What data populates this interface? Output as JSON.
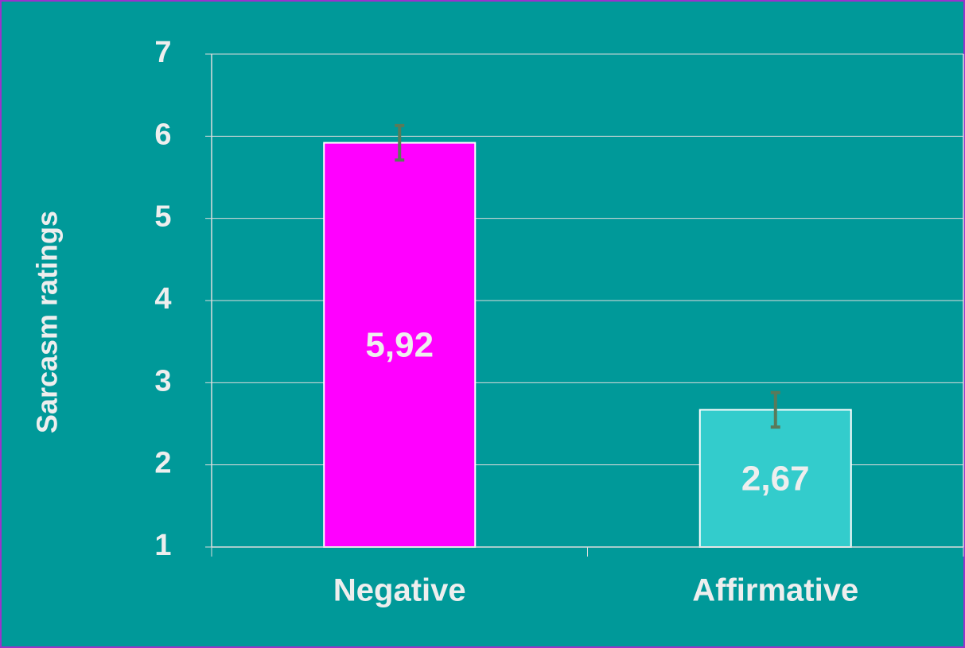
{
  "chart_data": {
    "type": "bar",
    "y_label": "Sarcasm ratings",
    "categories": [
      "Negative",
      "Affirmative"
    ],
    "values": [
      5.92,
      2.67
    ],
    "value_labels": [
      "5,92",
      "2,67"
    ],
    "errors": [
      0.21,
      0.21
    ],
    "colors": [
      "#ff00ff",
      "#33cccc"
    ],
    "error_color": "#5a7a5a",
    "ylim": [
      1,
      7
    ],
    "yticks": [
      1,
      2,
      3,
      4,
      5,
      6,
      7
    ],
    "grid": true
  }
}
